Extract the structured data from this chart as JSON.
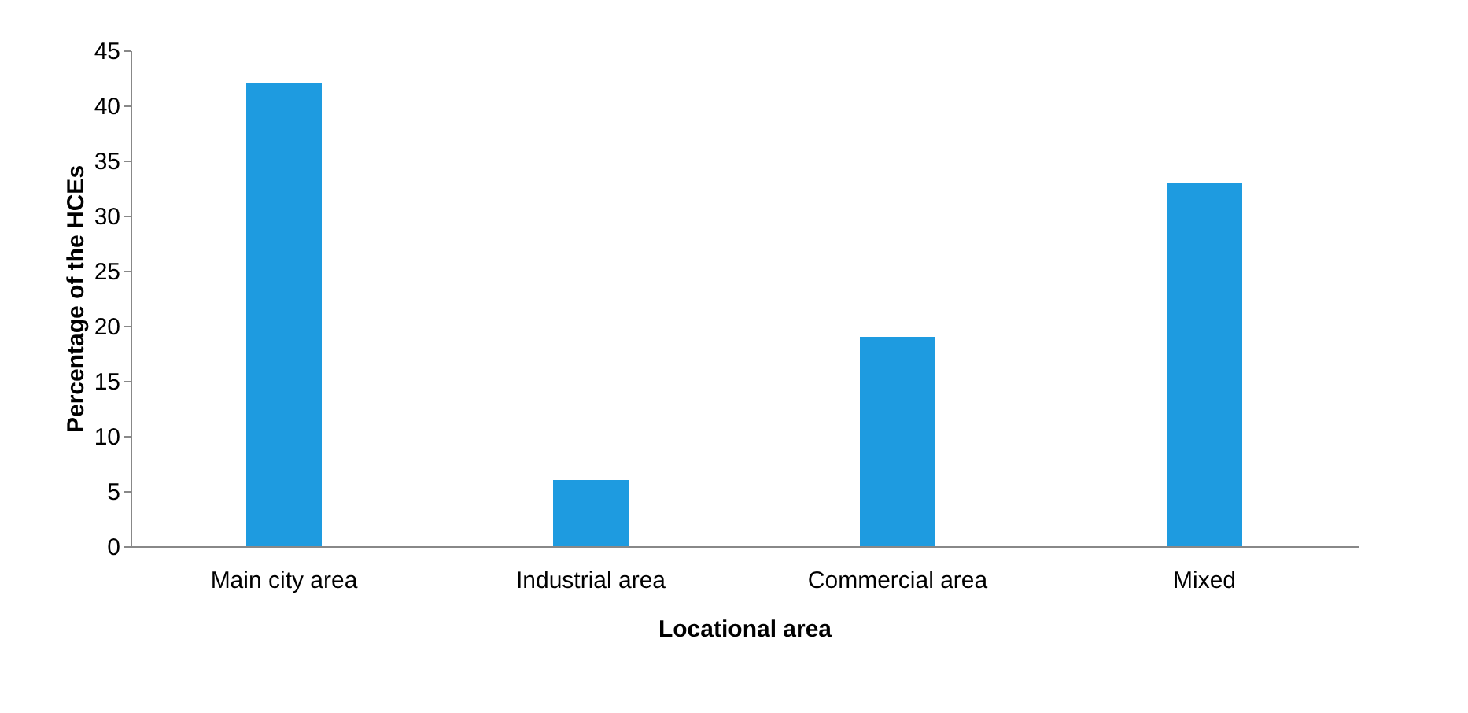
{
  "chart_data": {
    "type": "bar",
    "xlabel": "Locational area",
    "ylabel": "Percentage of the HCEs",
    "categories": [
      "Main city area",
      "Industrial area",
      "Commercial area",
      "Mixed"
    ],
    "values": [
      42,
      6,
      19,
      33
    ],
    "color": "#1e9be0",
    "ylim": [
      0,
      45
    ],
    "yticks": [
      0,
      5,
      10,
      15,
      20,
      25,
      30,
      35,
      40,
      45
    ],
    "grid": false
  }
}
